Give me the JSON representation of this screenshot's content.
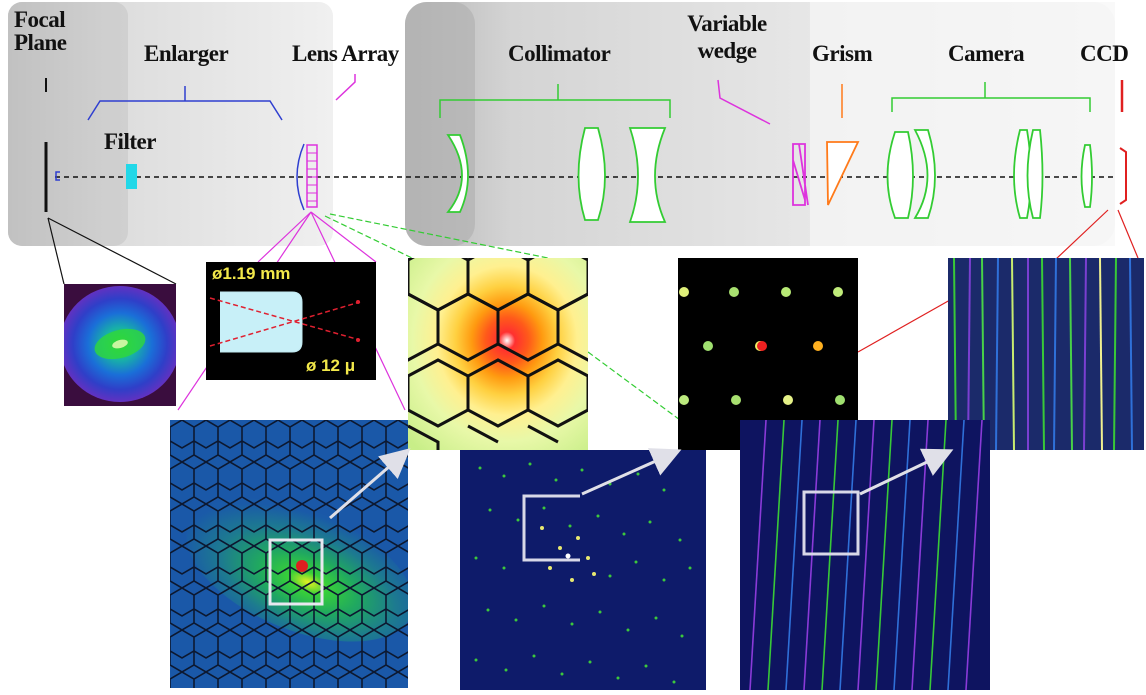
{
  "labels": {
    "focal_plane": "Focal Plane",
    "enlarger": "Enlarger",
    "lens_array": "Lens Array",
    "collimator": "Collimator",
    "variable_wedge": "Variable wedge",
    "grism": "Grism",
    "camera": "Camera",
    "ccd": "CCD",
    "filter": "Filter"
  },
  "lens_panel": {
    "diameter_label": "ø1.19 mm",
    "spot_label": "ø 12 μ"
  },
  "colors": {
    "enlarger_bracket": "#2f3fd0",
    "collimator_green": "#33cc33",
    "wedge_magenta": "#dd33dd",
    "grism_orange": "#ff7a1a",
    "ccd_red": "#e02020",
    "filter_cyan": "#22d8e8"
  }
}
